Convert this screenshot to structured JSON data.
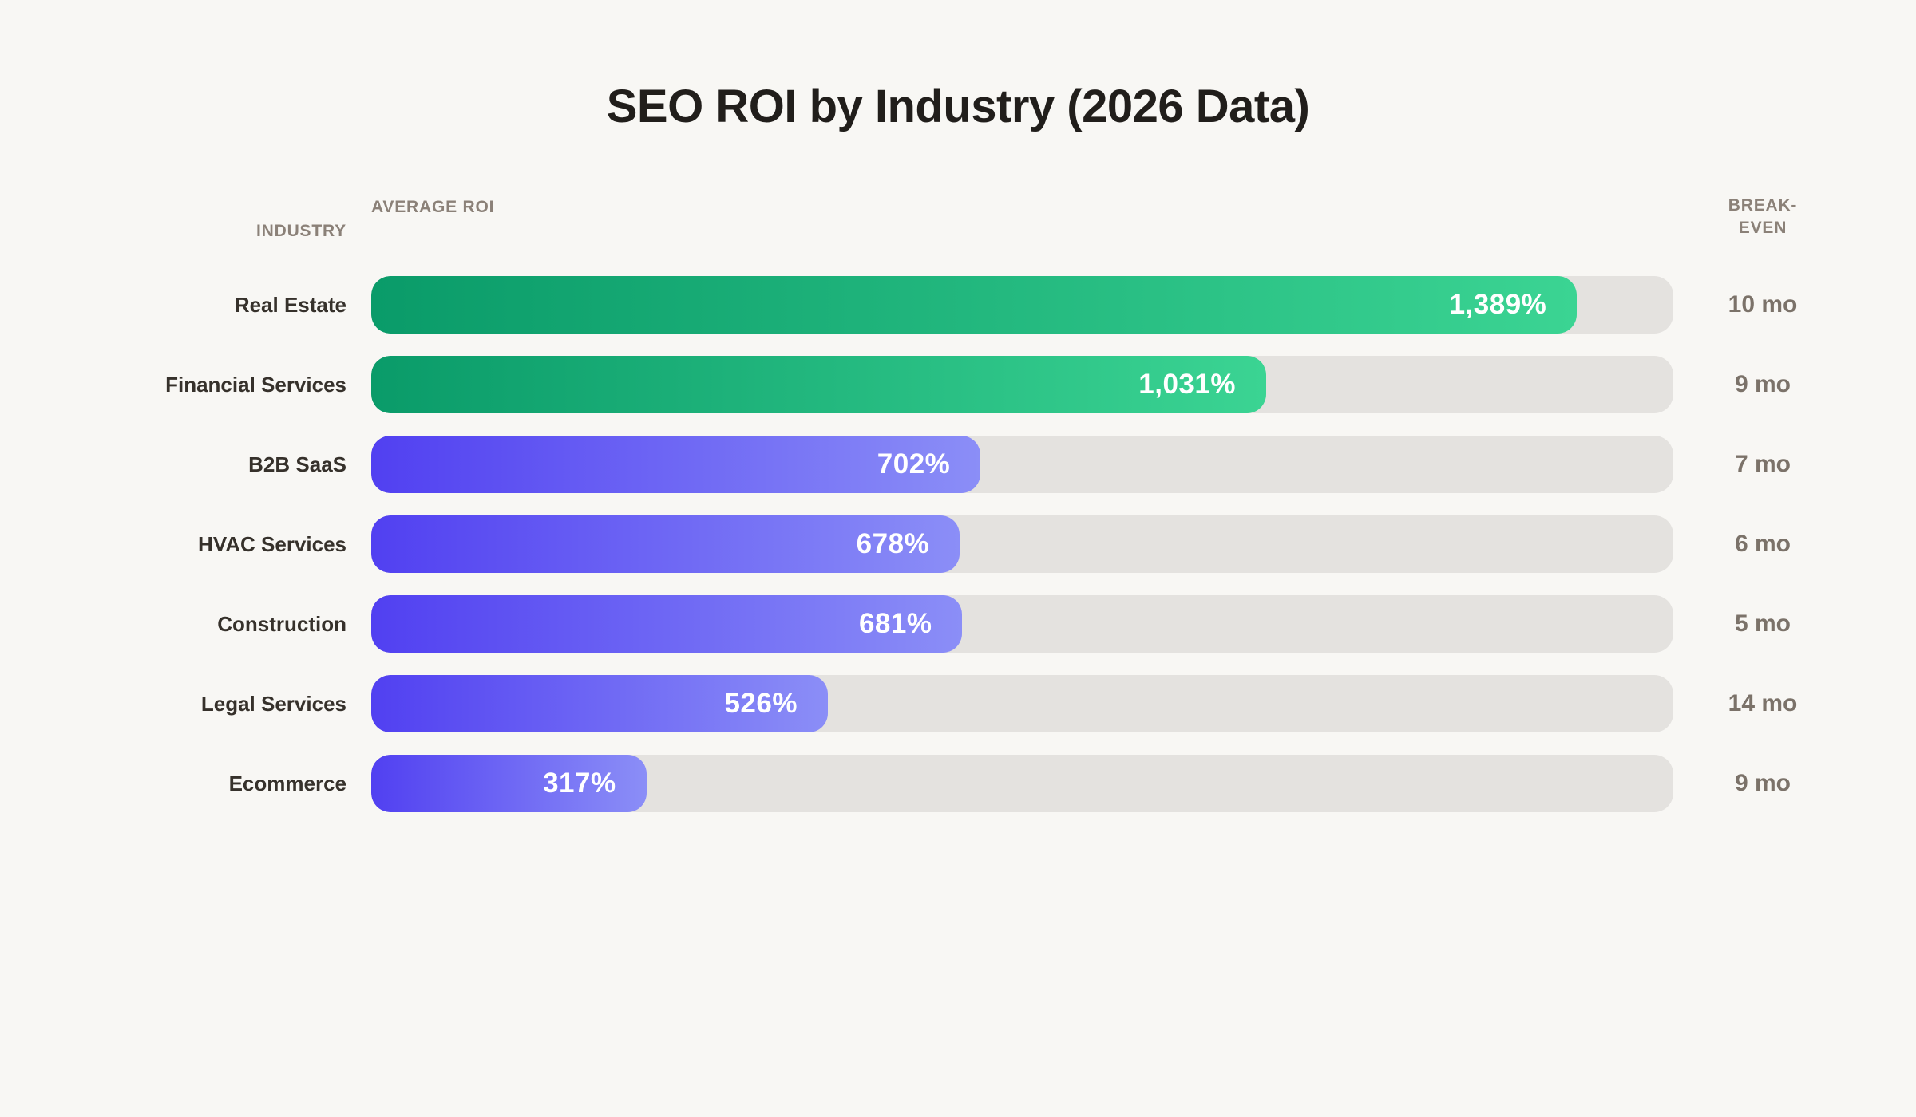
{
  "chart_data": {
    "type": "bar",
    "orientation": "horizontal",
    "title": "SEO ROI by Industry (2026 Data)",
    "columns": [
      "INDUSTRY",
      "AVERAGE ROI",
      "BREAK-EVEN"
    ],
    "categories": [
      "Real Estate",
      "Financial Services",
      "B2B SaaS",
      "HVAC Services",
      "Construction",
      "Legal Services",
      "Ecommerce"
    ],
    "values": [
      1389,
      1031,
      702,
      678,
      681,
      526,
      317
    ],
    "break_even_months": [
      10,
      9,
      7,
      6,
      5,
      14,
      9
    ],
    "xlabel": "Average ROI (%)",
    "xlim": [
      0,
      1500
    ],
    "grid": false,
    "legend": false,
    "rows": [
      {
        "industry": "Real Estate",
        "roi_pct": 1389,
        "roi_label": "1,389%",
        "break_even": "10 mo",
        "color": "green"
      },
      {
        "industry": "Financial Services",
        "roi_pct": 1031,
        "roi_label": "1,031%",
        "break_even": "9 mo",
        "color": "green"
      },
      {
        "industry": "B2B SaaS",
        "roi_pct": 702,
        "roi_label": "702%",
        "break_even": "7 mo",
        "color": "purple"
      },
      {
        "industry": "HVAC Services",
        "roi_pct": 678,
        "roi_label": "678%",
        "break_even": "6 mo",
        "color": "purple"
      },
      {
        "industry": "Construction",
        "roi_pct": 681,
        "roi_label": "681%",
        "break_even": "5 mo",
        "color": "purple"
      },
      {
        "industry": "Legal Services",
        "roi_pct": 526,
        "roi_label": "526%",
        "break_even": "14 mo",
        "color": "purple"
      },
      {
        "industry": "Ecommerce",
        "roi_pct": 317,
        "roi_label": "317%",
        "break_even": "9 mo",
        "color": "purple"
      }
    ]
  },
  "colors": {
    "background": "#f8f7f4",
    "bar_green_start": "#0a9b69",
    "bar_green_end": "#3bd493",
    "bar_purple_start": "#5140f1",
    "bar_purple_end": "#8b8ef7",
    "bar_track": "#e4e2df",
    "value_text": "#ffffff",
    "header_text": "#8b8178",
    "label_text": "#36312b",
    "break_even_text": "#7b7269",
    "title_text": "#211e1b"
  }
}
